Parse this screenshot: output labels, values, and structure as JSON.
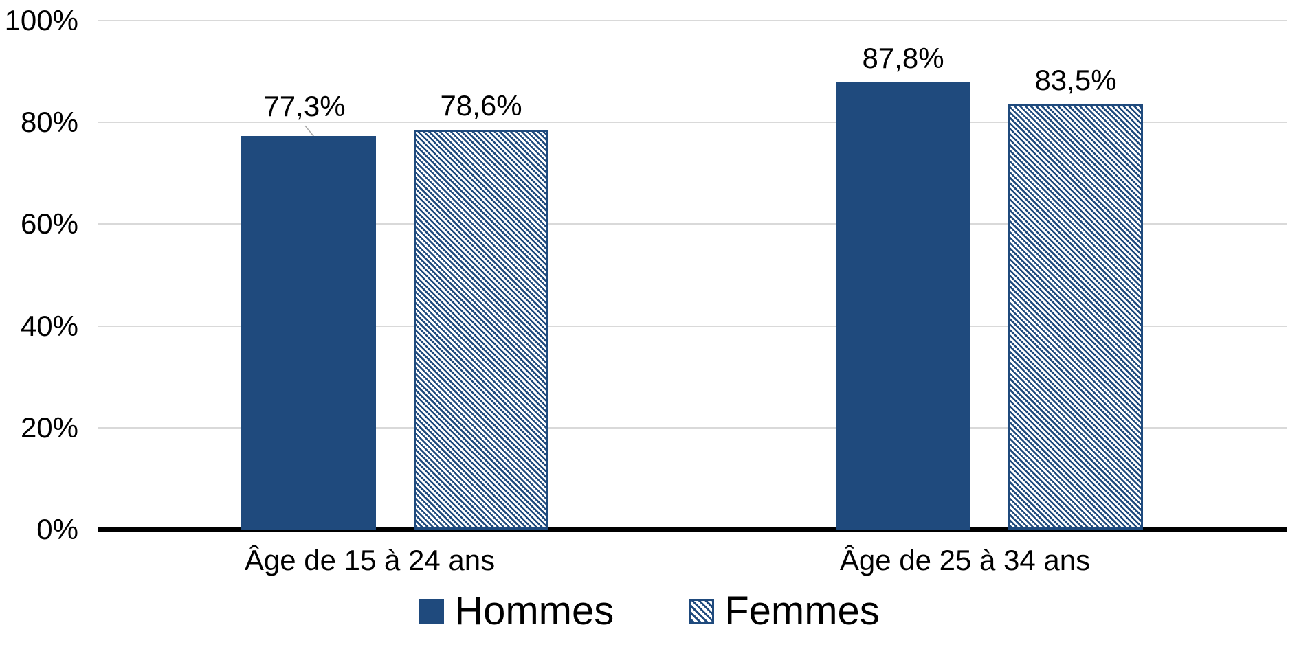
{
  "chart_data": {
    "type": "bar",
    "title": "",
    "categories": [
      "Âge de 15 à 24 ans",
      "Âge de 25 à 34 ans"
    ],
    "series": [
      {
        "name": "Hommes",
        "style": "solid",
        "values": [
          77.3,
          87.8
        ],
        "value_labels": [
          "77,3%",
          "87,8%"
        ]
      },
      {
        "name": "Femmes",
        "style": "hatched",
        "values": [
          78.6,
          83.5
        ],
        "value_labels": [
          "78,6%",
          "83,5%"
        ]
      }
    ],
    "y_axis": {
      "min": 0,
      "max": 100,
      "tick_values": [
        0,
        20,
        40,
        60,
        80,
        100
      ],
      "tick_labels": [
        "0%",
        "20%",
        "40%",
        "60%",
        "80%",
        "100%"
      ]
    },
    "grid": true,
    "legend_position": "bottom",
    "annotations": {
      "first_label_has_leader_line": true
    },
    "colors": {
      "series_blue": "#1F4A7D",
      "gridline": "#D9D9D9",
      "axis_line": "#000000",
      "text": "#000000",
      "background": "#FFFFFF",
      "leader_line": "#A6A6A6"
    }
  }
}
